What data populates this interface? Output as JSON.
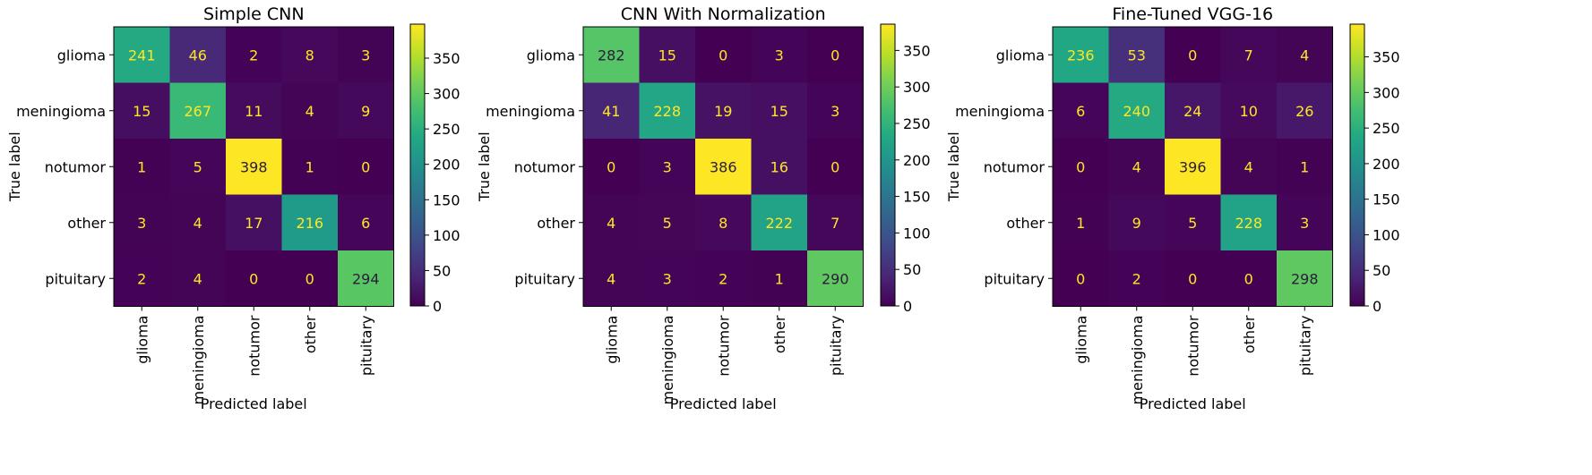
{
  "chart_data": [
    {
      "type": "heatmap",
      "title": "Simple CNN",
      "xlabel": "Predicted label",
      "ylabel": "True label",
      "x_categories": [
        "glioma",
        "meningioma",
        "notumor",
        "other",
        "pituitary"
      ],
      "y_categories": [
        "glioma",
        "meningioma",
        "notumor",
        "other",
        "pituitary"
      ],
      "matrix": [
        [
          241,
          46,
          2,
          8,
          3
        ],
        [
          15,
          267,
          11,
          4,
          9
        ],
        [
          1,
          5,
          398,
          1,
          0
        ],
        [
          3,
          4,
          17,
          216,
          6
        ],
        [
          2,
          4,
          0,
          0,
          294
        ]
      ],
      "colorbar": {
        "min": 0,
        "max": 398,
        "ticks": [
          0,
          50,
          100,
          150,
          200,
          250,
          300,
          350
        ]
      },
      "colormap": "viridis"
    },
    {
      "type": "heatmap",
      "title": "CNN With Normalization",
      "xlabel": "Predicted label",
      "ylabel": "True label",
      "x_categories": [
        "glioma",
        "meningioma",
        "notumor",
        "other",
        "pituitary"
      ],
      "y_categories": [
        "glioma",
        "meningioma",
        "notumor",
        "other",
        "pituitary"
      ],
      "matrix": [
        [
          282,
          15,
          0,
          3,
          0
        ],
        [
          41,
          228,
          19,
          15,
          3
        ],
        [
          0,
          3,
          386,
          16,
          0
        ],
        [
          4,
          5,
          8,
          222,
          7
        ],
        [
          4,
          3,
          2,
          1,
          290
        ]
      ],
      "colorbar": {
        "min": 0,
        "max": 386,
        "ticks": [
          0,
          50,
          100,
          150,
          200,
          250,
          300,
          350
        ]
      },
      "colormap": "viridis"
    },
    {
      "type": "heatmap",
      "title": "Fine-Tuned VGG-16",
      "xlabel": "Predicted label",
      "ylabel": "True label",
      "x_categories": [
        "glioma",
        "meningioma",
        "notumor",
        "other",
        "pituitary"
      ],
      "y_categories": [
        "glioma",
        "meningioma",
        "notumor",
        "other",
        "pituitary"
      ],
      "matrix": [
        [
          236,
          53,
          0,
          7,
          4
        ],
        [
          6,
          240,
          24,
          10,
          26
        ],
        [
          0,
          4,
          396,
          4,
          1
        ],
        [
          1,
          9,
          5,
          228,
          3
        ],
        [
          0,
          2,
          0,
          0,
          298
        ]
      ],
      "colorbar": {
        "min": 0,
        "max": 396,
        "ticks": [
          0,
          50,
          100,
          150,
          200,
          250,
          300,
          350
        ]
      },
      "colormap": "viridis"
    }
  ]
}
